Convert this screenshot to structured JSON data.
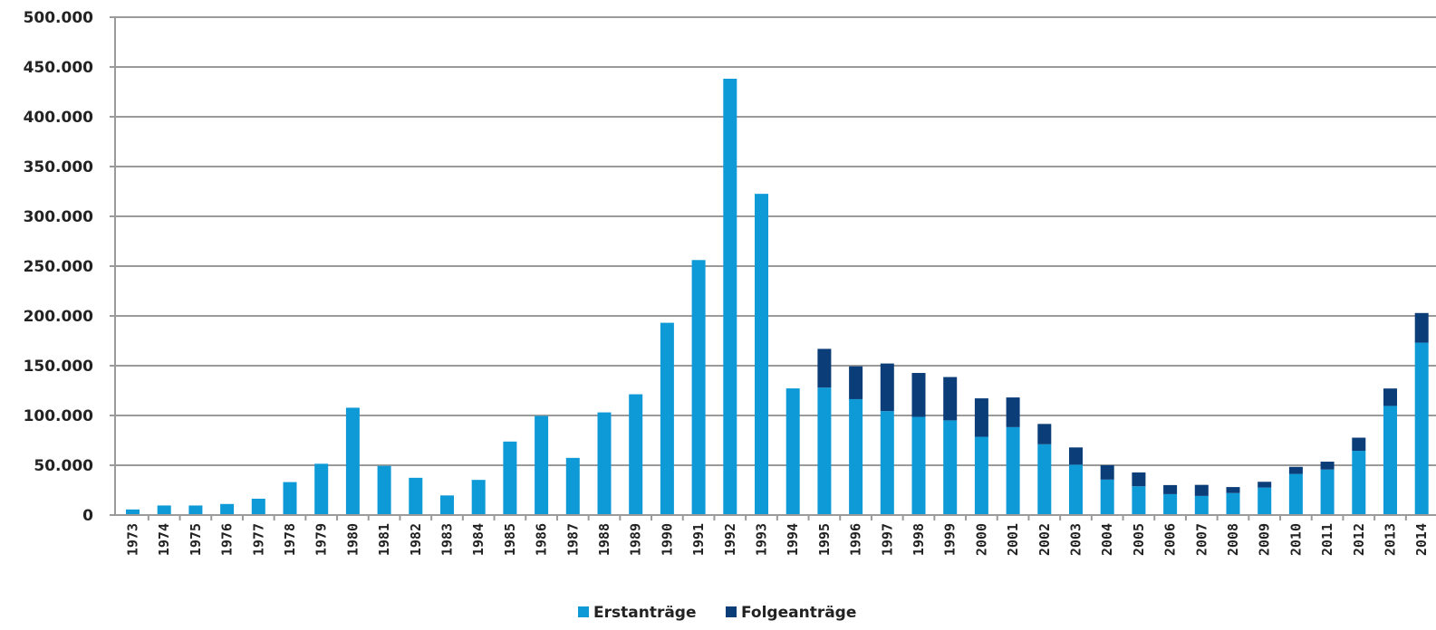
{
  "chart_data": {
    "type": "bar",
    "stacked": true,
    "title": "",
    "xlabel": "",
    "ylabel": "",
    "ylim": [
      0,
      500000
    ],
    "yticks": [
      0,
      50000,
      100000,
      150000,
      200000,
      250000,
      300000,
      350000,
      400000,
      450000,
      500000
    ],
    "ytick_labels": [
      "0",
      "50.000",
      "100.000",
      "150.000",
      "200.000",
      "250.000",
      "300.000",
      "350.000",
      "400.000",
      "450.000",
      "500.000"
    ],
    "grid": true,
    "legend_position": "bottom-center",
    "categories": [
      "1973",
      "1974",
      "1975",
      "1976",
      "1977",
      "1978",
      "1979",
      "1980",
      "1981",
      "1982",
      "1983",
      "1984",
      "1985",
      "1986",
      "1987",
      "1988",
      "1989",
      "1990",
      "1991",
      "1992",
      "1993",
      "1994",
      "1995",
      "1996",
      "1997",
      "1998",
      "1999",
      "2000",
      "2001",
      "2002",
      "2003",
      "2004",
      "2005",
      "2006",
      "2007",
      "2008",
      "2009",
      "2010",
      "2011",
      "2012",
      "2013",
      "2014"
    ],
    "series": [
      {
        "name": "Erstanträge",
        "color": "#0e9ad7",
        "values": [
          5600,
          9600,
          9600,
          11100,
          16400,
          33100,
          51500,
          107800,
          49400,
          37400,
          19700,
          35300,
          73800,
          99600,
          57400,
          103100,
          121300,
          193100,
          256100,
          438200,
          322600,
          127200,
          128000,
          116400,
          104400,
          98600,
          95100,
          78600,
          88300,
          71100,
          50600,
          35600,
          28900,
          21000,
          19200,
          22100,
          27600,
          41300,
          45700,
          64500,
          109600,
          173100
        ]
      },
      {
        "name": "Folgeanträge",
        "color": "#0b3d78",
        "values": [
          0,
          0,
          0,
          0,
          0,
          0,
          0,
          0,
          0,
          0,
          0,
          0,
          0,
          0,
          0,
          0,
          0,
          0,
          0,
          0,
          0,
          0,
          38900,
          33000,
          47800,
          44100,
          43500,
          38600,
          29800,
          20400,
          17300,
          14500,
          13900,
          9100,
          11100,
          6000,
          5800,
          7100,
          7900,
          13200,
          17500,
          29800
        ]
      }
    ]
  }
}
